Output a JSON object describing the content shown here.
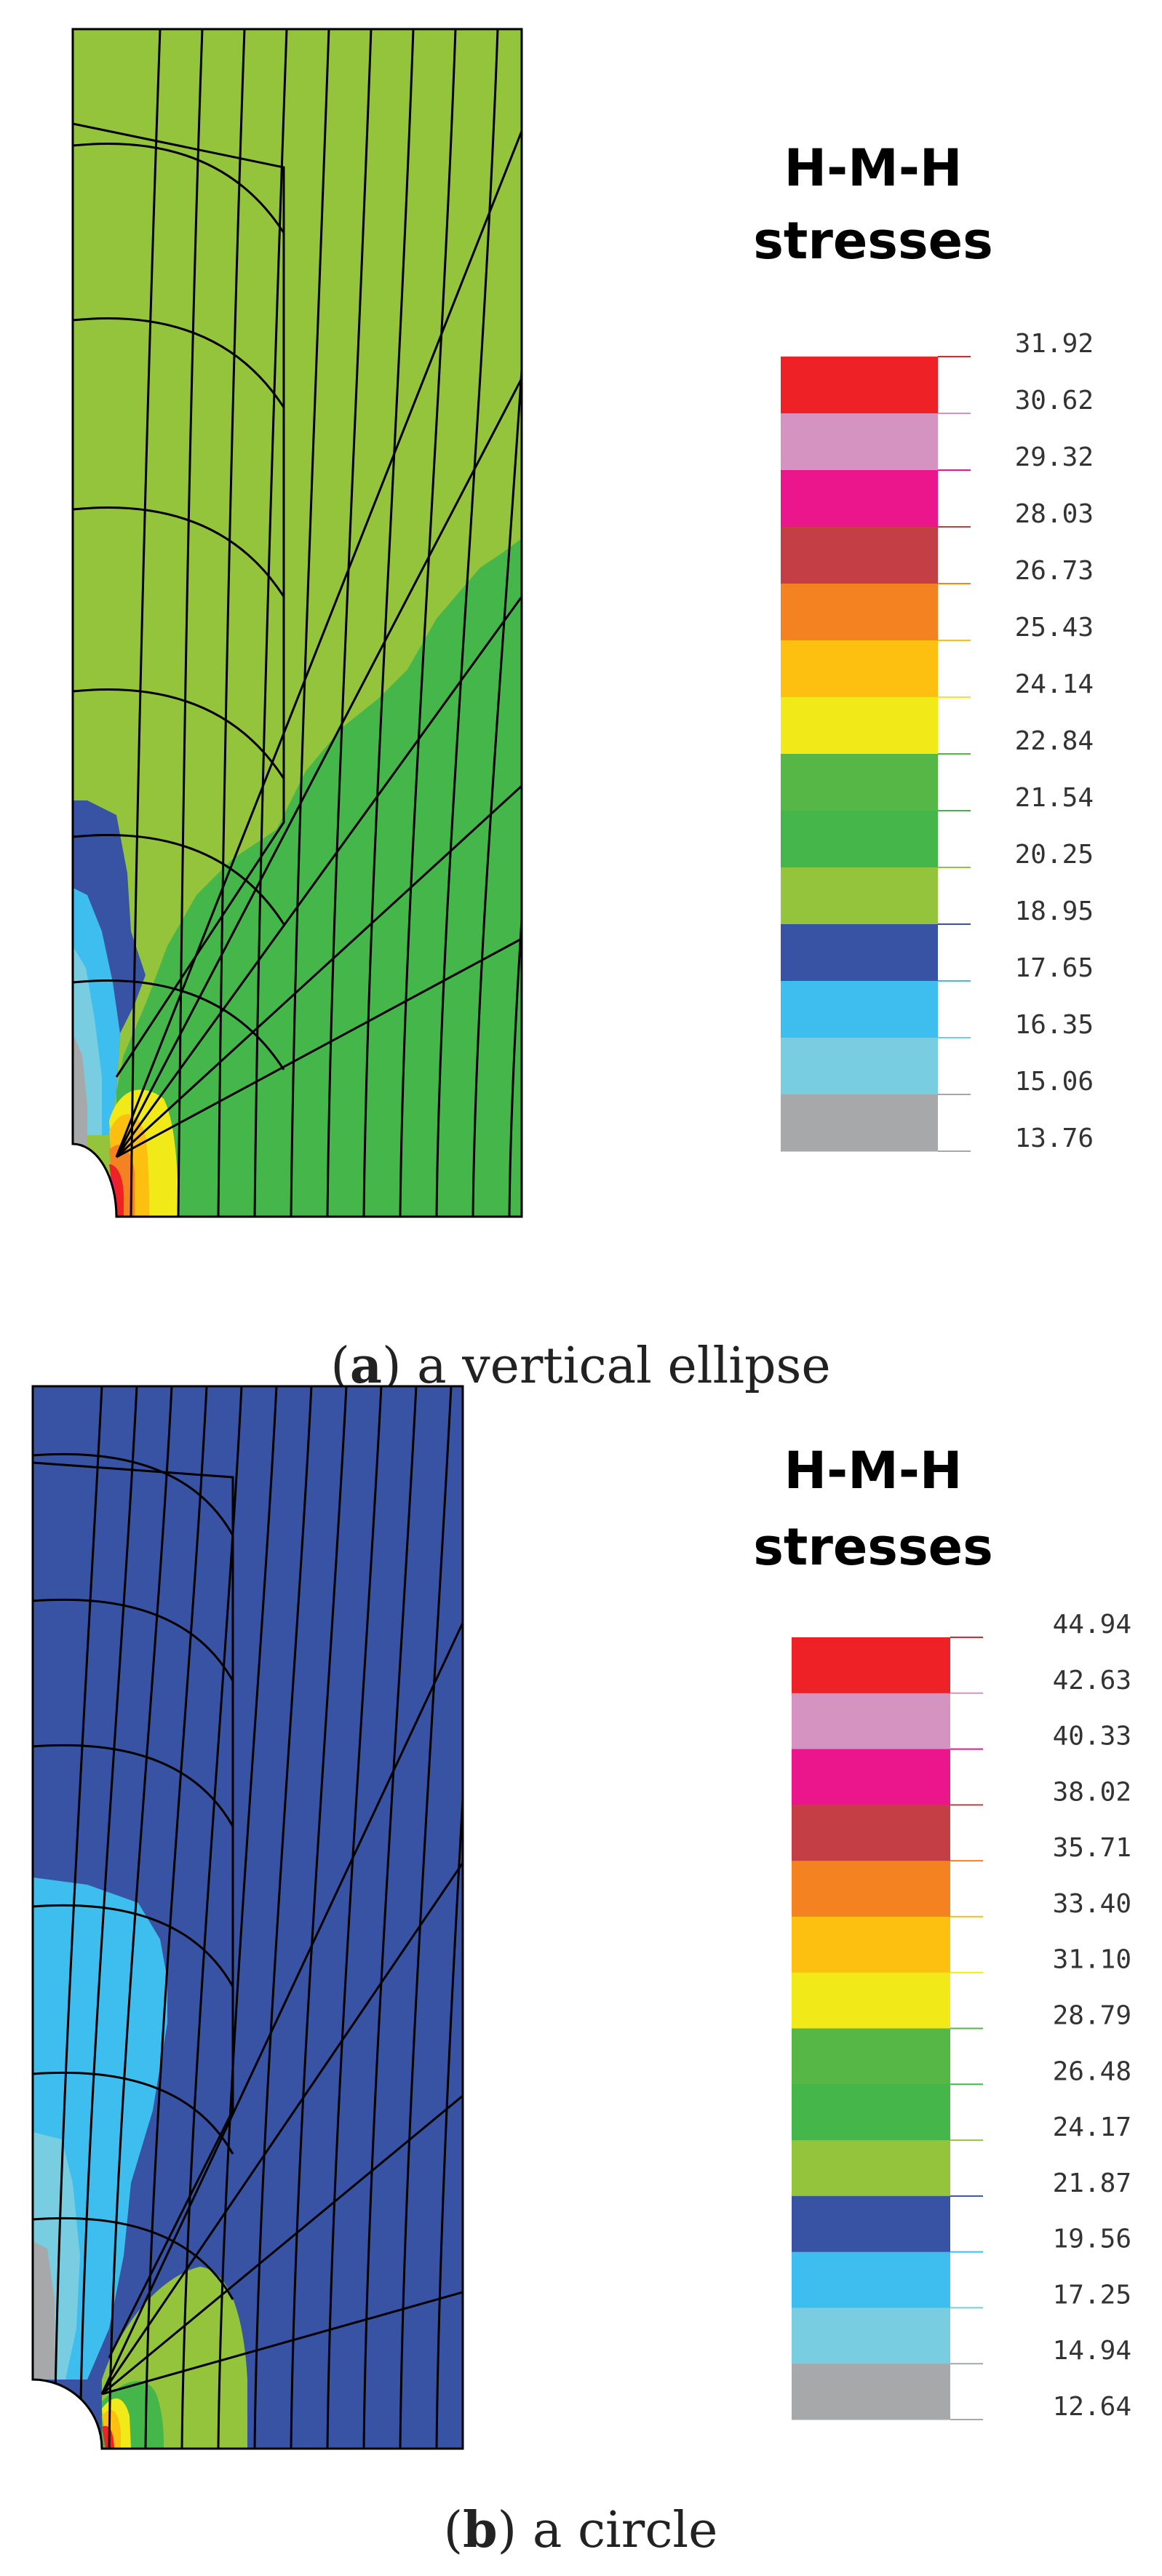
{
  "panels": [
    {
      "id": "a",
      "title_lines": [
        "H-M-H",
        "stresses"
      ],
      "caption_letter": "a",
      "caption_text": " a vertical ellipse",
      "legend_values": [
        "31.92",
        "30.62",
        "29.32",
        "28.03",
        "26.73",
        "25.43",
        "24.14",
        "22.84",
        "21.54",
        "20.25",
        "18.95",
        "17.65",
        "16.35",
        "15.06",
        "13.76"
      ]
    },
    {
      "id": "b",
      "title_lines": [
        "H-M-H",
        "stresses"
      ],
      "caption_letter": "b",
      "caption_text": " a circle",
      "legend_values": [
        "44.94",
        "42.63",
        "40.33",
        "38.02",
        "35.71",
        "33.40",
        "31.10",
        "28.79",
        "26.48",
        "24.17",
        "21.87",
        "19.56",
        "17.25",
        "14.94",
        "12.64"
      ]
    }
  ],
  "legend_colors": [
    "#ee2127",
    "#d593c2",
    "#ec168c",
    "#c43f45",
    "#f58221",
    "#fec010",
    "#f2ea18",
    "#56b747",
    "#45b649",
    "#94c33c",
    "#3953a4",
    "#3dbeee",
    "#78cde0",
    "#a7a8a9"
  ],
  "colors": {
    "green_light": "#94c33c",
    "green_dark": "#45b649",
    "blue_dark": "#3953a4",
    "blue_light": "#3dbeee",
    "cyan_pale": "#78cde0",
    "grey": "#a7a8a9",
    "yellow": "#f2ea18",
    "orange_yellow": "#fec010",
    "orange": "#f58221",
    "magenta": "#ec168c",
    "red": "#ee2127"
  }
}
